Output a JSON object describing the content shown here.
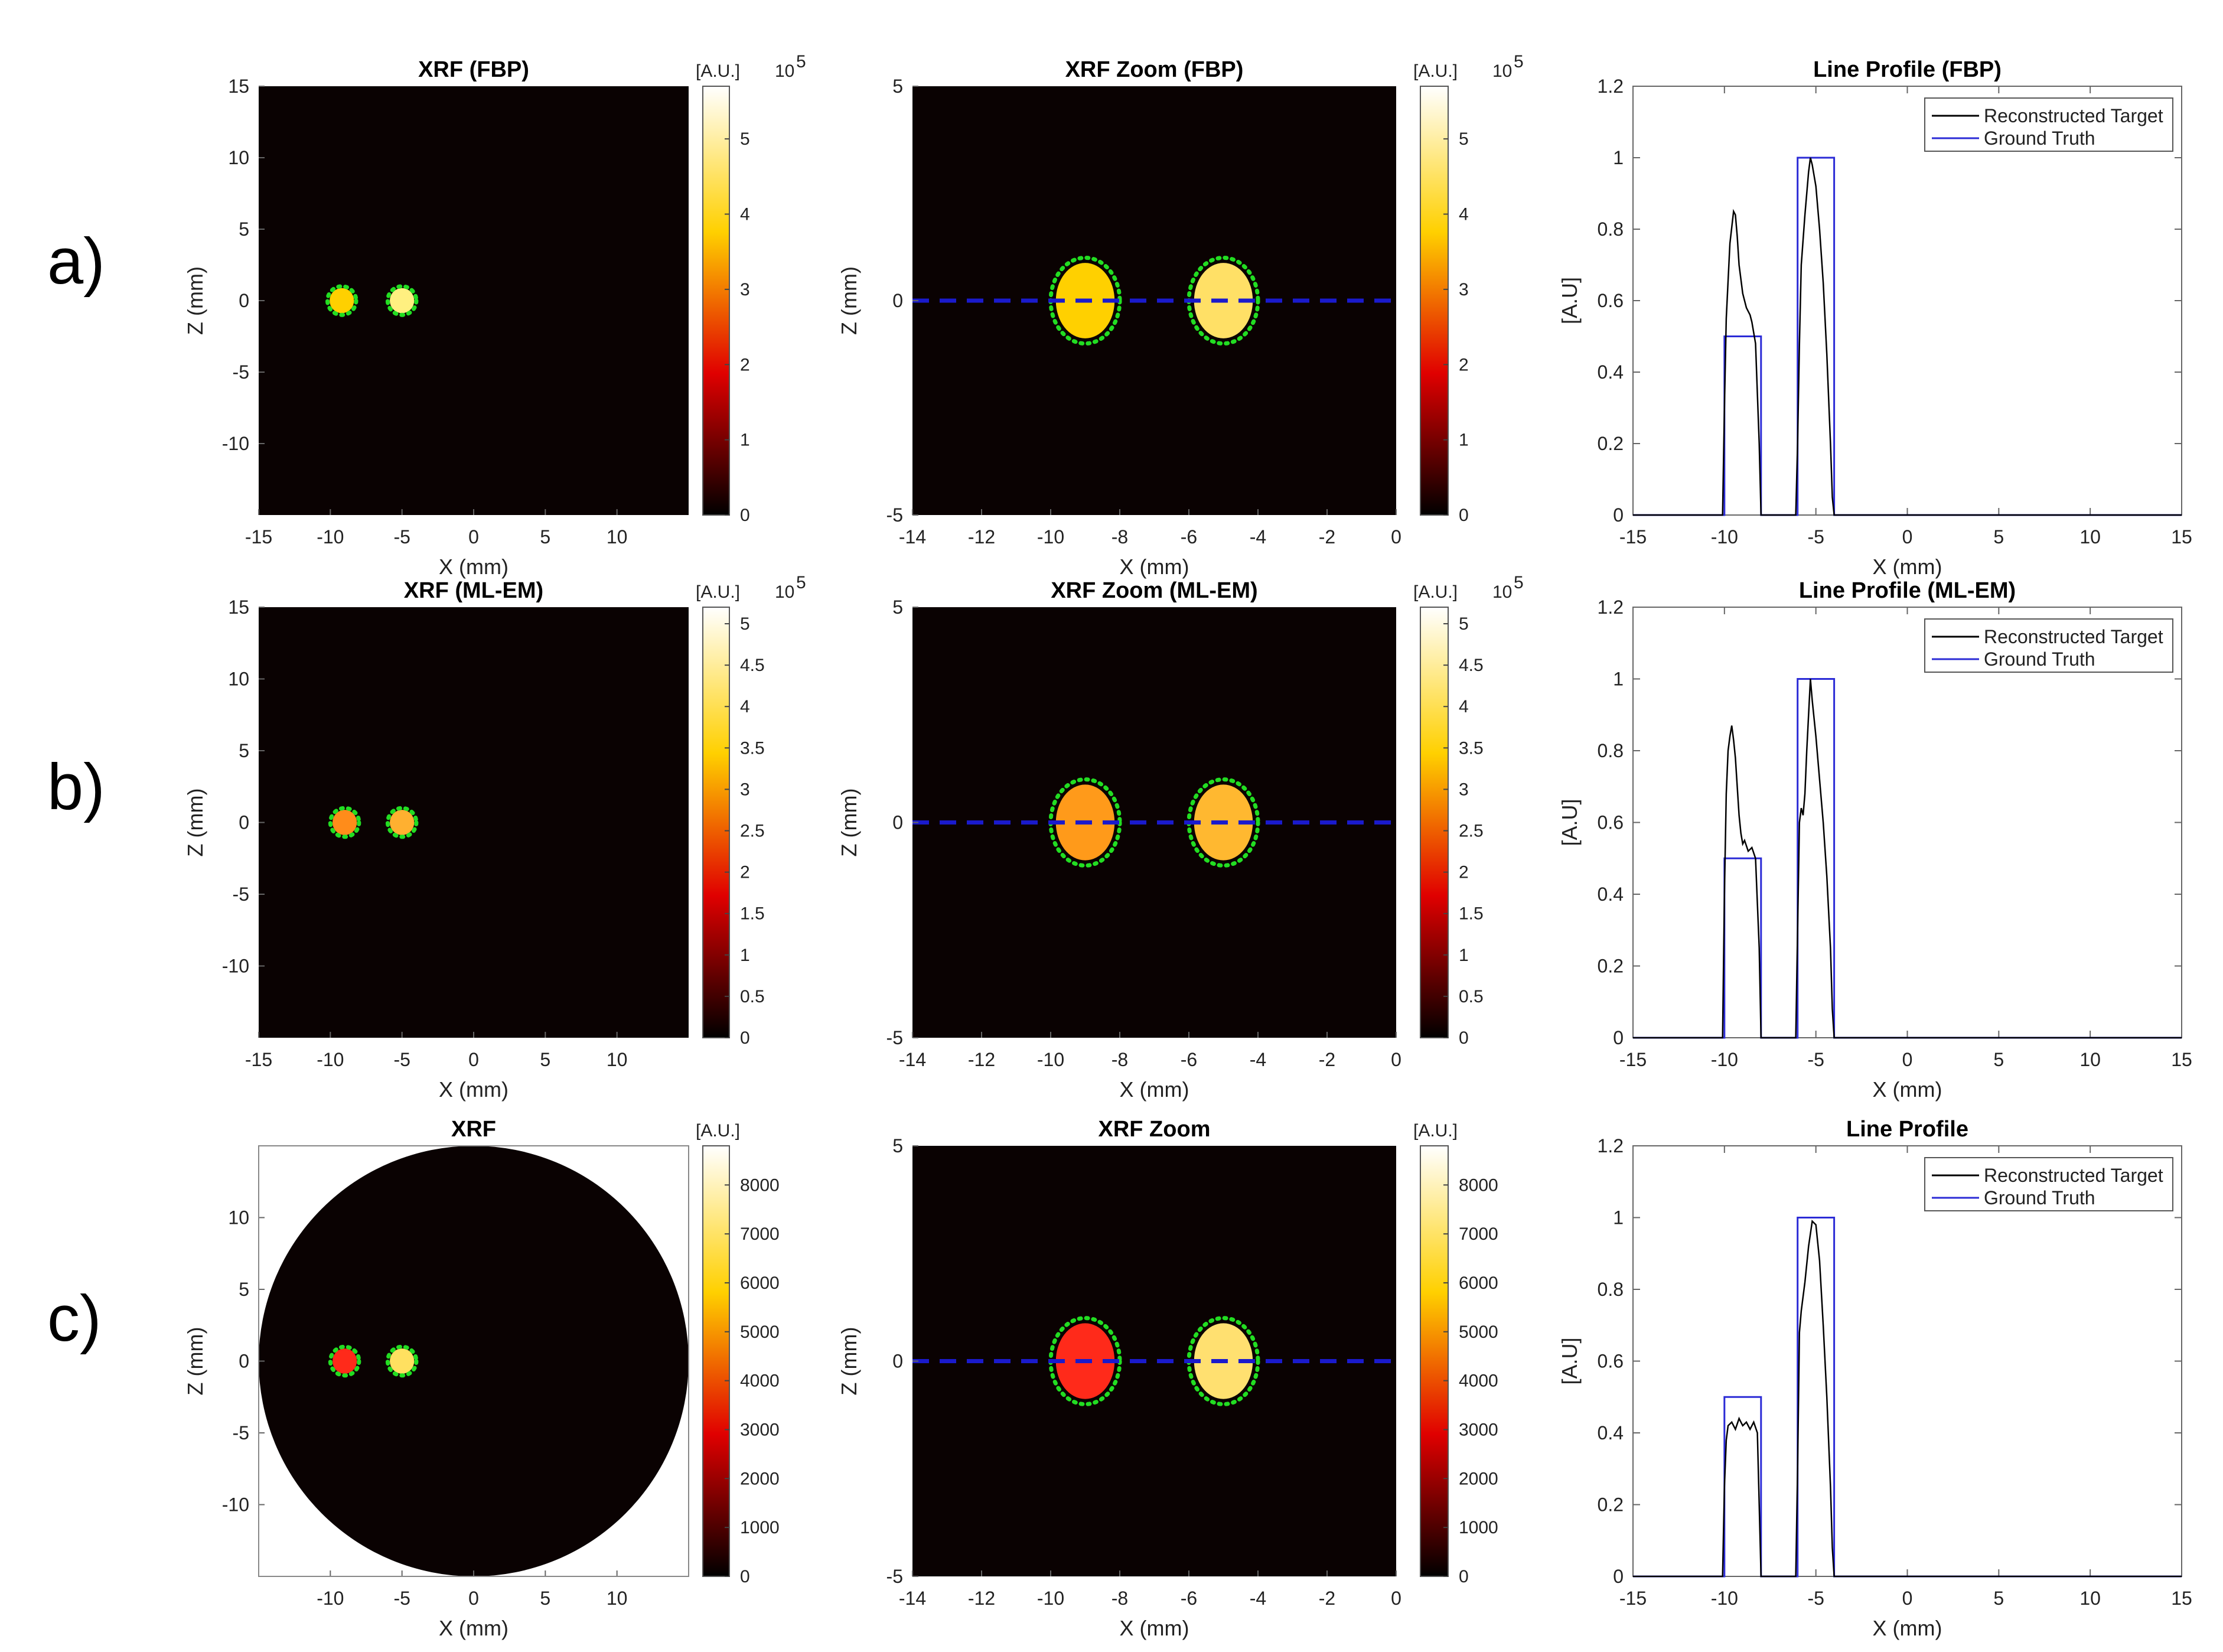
{
  "chart_data": [
    {
      "type": "heatmap",
      "row": "a",
      "title": "XRF (FBP)",
      "xlabel": "X (mm)",
      "ylabel": "Z (mm)",
      "xlim": [
        -15,
        15
      ],
      "ylim": [
        -15,
        15
      ],
      "xticks": [
        "-15",
        "-10",
        "-5",
        "0",
        "5",
        "10"
      ],
      "yticks": [
        "15",
        "10",
        "5",
        "0",
        "-5",
        "-10"
      ],
      "colorbar": {
        "unit": "[A.U.]",
        "exponent": "10",
        "exponent_power": "5",
        "ticks": [
          "0",
          "1",
          "2",
          "3",
          "4",
          "5"
        ],
        "max": 5.7
      },
      "field": "square",
      "targets": [
        {
          "x": -9.2,
          "z": 0,
          "r": 1,
          "fill": "#ffd000"
        },
        {
          "x": -5,
          "z": 0,
          "r": 1,
          "fill": "#fff080"
        }
      ]
    },
    {
      "type": "heatmap",
      "row": "a",
      "title": "XRF Zoom (FBP)",
      "xlabel": "X (mm)",
      "ylabel": "Z (mm)",
      "xlim": [
        -14,
        0
      ],
      "ylim": [
        -5,
        5
      ],
      "xticks": [
        "-14",
        "-12",
        "-10",
        "-8",
        "-6",
        "-4",
        "-2",
        "0"
      ],
      "yticks": [
        "5",
        "0",
        "-5"
      ],
      "colorbar": {
        "unit": "[A.U.]",
        "exponent": "10",
        "exponent_power": "5",
        "ticks": [
          "0",
          "1",
          "2",
          "3",
          "4",
          "5"
        ],
        "max": 5.7
      },
      "profile_line_z": 0,
      "targets": [
        {
          "x": -9,
          "z": 0,
          "r": 1,
          "fill": "#ffd000"
        },
        {
          "x": -5,
          "z": 0,
          "r": 1,
          "fill": "#ffe066"
        }
      ]
    },
    {
      "type": "line",
      "row": "a",
      "title": "Line Profile (FBP)",
      "xlabel": "X (mm)",
      "ylabel": "[A.U]",
      "xlim": [
        -15,
        15
      ],
      "ylim": [
        0,
        1.2
      ],
      "xticks": [
        "-15",
        "-10",
        "-5",
        "0",
        "5",
        "10",
        "15"
      ],
      "yticks": [
        "0",
        "0.2",
        "0.4",
        "0.6",
        "0.8",
        "1",
        "1.2"
      ],
      "series": [
        {
          "name": "Reconstructed Target",
          "color": "#000000",
          "x": [
            -15,
            -10.1,
            -10,
            -9.9,
            -9.7,
            -9.5,
            -9.4,
            -9.3,
            -9.2,
            -9.0,
            -8.8,
            -8.6,
            -8.5,
            -8.3,
            -8.1,
            -8.0,
            -6.1,
            -6.0,
            -5.9,
            -5.8,
            -5.6,
            -5.4,
            -5.3,
            -5.2,
            -5.0,
            -4.8,
            -4.6,
            -4.4,
            -4.2,
            -4.1,
            -4.0,
            15
          ],
          "y": [
            0,
            0,
            0.3,
            0.55,
            0.76,
            0.85,
            0.84,
            0.78,
            0.7,
            0.62,
            0.58,
            0.56,
            0.54,
            0.48,
            0.2,
            0,
            0,
            0.2,
            0.48,
            0.7,
            0.84,
            0.96,
            1.0,
            0.98,
            0.92,
            0.8,
            0.65,
            0.45,
            0.2,
            0.05,
            0,
            0
          ]
        },
        {
          "name": "Ground Truth",
          "color": "#2b2bd6",
          "x": [
            -15,
            -10,
            -10,
            -8,
            -8,
            -6,
            -6,
            -4,
            -4,
            15
          ],
          "y": [
            0,
            0,
            0.5,
            0.5,
            0,
            0,
            1,
            1,
            0,
            0
          ]
        }
      ]
    },
    {
      "type": "heatmap",
      "row": "b",
      "title": "XRF (ML-EM)",
      "xlabel": "X (mm)",
      "ylabel": "Z (mm)",
      "xlim": [
        -15,
        15
      ],
      "ylim": [
        -15,
        15
      ],
      "xticks": [
        "-15",
        "-10",
        "-5",
        "0",
        "5",
        "10"
      ],
      "yticks": [
        "15",
        "10",
        "5",
        "0",
        "-5",
        "-10"
      ],
      "colorbar": {
        "unit": "[A.U.]",
        "exponent": "10",
        "exponent_power": "5",
        "ticks": [
          "0",
          "0.5",
          "1",
          "1.5",
          "2",
          "2.5",
          "3",
          "3.5",
          "4",
          "4.5",
          "5"
        ],
        "max": 5.2
      },
      "field": "square",
      "targets": [
        {
          "x": -9,
          "z": 0,
          "r": 1,
          "fill": "#ff8c1a"
        },
        {
          "x": -5,
          "z": 0,
          "r": 1,
          "fill": "#ffb030"
        }
      ]
    },
    {
      "type": "heatmap",
      "row": "b",
      "title": "XRF Zoom (ML-EM)",
      "xlabel": "X (mm)",
      "ylabel": "Z (mm)",
      "xlim": [
        -14,
        0
      ],
      "ylim": [
        -5,
        5
      ],
      "xticks": [
        "-14",
        "-12",
        "-10",
        "-8",
        "-6",
        "-4",
        "-2",
        "0"
      ],
      "yticks": [
        "5",
        "0",
        "-5"
      ],
      "colorbar": {
        "unit": "[A.U.]",
        "exponent": "10",
        "exponent_power": "5",
        "ticks": [
          "0",
          "0.5",
          "1",
          "1.5",
          "2",
          "2.5",
          "3",
          "3.5",
          "4",
          "4.5",
          "5"
        ],
        "max": 5.2
      },
      "profile_line_z": 0,
      "targets": [
        {
          "x": -9,
          "z": 0,
          "r": 1,
          "fill": "#ff9a1a"
        },
        {
          "x": -5,
          "z": 0,
          "r": 1,
          "fill": "#ffb830"
        }
      ]
    },
    {
      "type": "line",
      "row": "b",
      "title": "Line Profile (ML-EM)",
      "xlabel": "X (mm)",
      "ylabel": "[A.U]",
      "xlim": [
        -15,
        15
      ],
      "ylim": [
        0,
        1.2
      ],
      "xticks": [
        "-15",
        "-10",
        "-5",
        "0",
        "5",
        "10",
        "15"
      ],
      "yticks": [
        "0",
        "0.2",
        "0.4",
        "0.6",
        "0.8",
        "1",
        "1.2"
      ],
      "series": [
        {
          "name": "Reconstructed Target",
          "color": "#000000",
          "x": [
            -15,
            -10.1,
            -10,
            -9.9,
            -9.8,
            -9.7,
            -9.6,
            -9.5,
            -9.4,
            -9.3,
            -9.2,
            -9.1,
            -9.0,
            -8.9,
            -8.7,
            -8.5,
            -8.3,
            -8.1,
            -8.0,
            -6.1,
            -6.0,
            -5.9,
            -5.8,
            -5.7,
            -5.6,
            -5.5,
            -5.4,
            -5.3,
            -5.2,
            -5.0,
            -4.8,
            -4.6,
            -4.4,
            -4.2,
            -4.1,
            -4.0,
            15
          ],
          "y": [
            0,
            0,
            0.4,
            0.68,
            0.8,
            0.84,
            0.87,
            0.83,
            0.78,
            0.7,
            0.62,
            0.57,
            0.54,
            0.55,
            0.52,
            0.53,
            0.5,
            0.25,
            0,
            0,
            0.3,
            0.6,
            0.64,
            0.62,
            0.68,
            0.8,
            0.9,
            1.0,
            0.94,
            0.84,
            0.72,
            0.6,
            0.45,
            0.25,
            0.08,
            0,
            0
          ]
        },
        {
          "name": "Ground Truth",
          "color": "#2b2bd6",
          "x": [
            -15,
            -10,
            -10,
            -8,
            -8,
            -6,
            -6,
            -4,
            -4,
            15
          ],
          "y": [
            0,
            0,
            0.5,
            0.5,
            0,
            0,
            1,
            1,
            0,
            0
          ]
        }
      ]
    },
    {
      "type": "heatmap",
      "row": "c",
      "title": "XRF",
      "xlabel": "X (mm)",
      "ylabel": "Z (mm)",
      "xlim": [
        -15,
        15
      ],
      "ylim": [
        -15,
        15
      ],
      "xticks": [
        "-10",
        "-5",
        "0",
        "5",
        "10"
      ],
      "yticks": [
        "10",
        "5",
        "0",
        "-5",
        "-10"
      ],
      "colorbar": {
        "unit": "[A.U.]",
        "ticks": [
          "0",
          "1000",
          "2000",
          "3000",
          "4000",
          "5000",
          "6000",
          "7000",
          "8000"
        ],
        "max": 8800
      },
      "field": "circle",
      "targets": [
        {
          "x": -9,
          "z": 0,
          "r": 1,
          "fill": "#ff2a1a"
        },
        {
          "x": -5,
          "z": 0,
          "r": 1,
          "fill": "#ffe060"
        }
      ]
    },
    {
      "type": "heatmap",
      "row": "c",
      "title": "XRF Zoom",
      "xlabel": "X (mm)",
      "ylabel": "Z (mm)",
      "xlim": [
        -14,
        0
      ],
      "ylim": [
        -5,
        5
      ],
      "xticks": [
        "-14",
        "-12",
        "-10",
        "-8",
        "-6",
        "-4",
        "-2",
        "0"
      ],
      "yticks": [
        "5",
        "0",
        "-5"
      ],
      "colorbar": {
        "unit": "[A.U.]",
        "ticks": [
          "0",
          "1000",
          "2000",
          "3000",
          "4000",
          "5000",
          "6000",
          "7000",
          "8000"
        ],
        "max": 8800
      },
      "profile_line_z": 0,
      "targets": [
        {
          "x": -9,
          "z": 0,
          "r": 1,
          "fill": "#ff2a1a"
        },
        {
          "x": -5,
          "z": 0,
          "r": 1,
          "fill": "#ffe070"
        }
      ]
    },
    {
      "type": "line",
      "row": "c",
      "title": "Line Profile",
      "xlabel": "X (mm)",
      "ylabel": "[A.U]",
      "xlim": [
        -15,
        15
      ],
      "ylim": [
        0,
        1.2
      ],
      "xticks": [
        "-15",
        "-10",
        "-5",
        "0",
        "5",
        "10",
        "15"
      ],
      "yticks": [
        "0",
        "0.2",
        "0.4",
        "0.6",
        "0.8",
        "1",
        "1.2"
      ],
      "series": [
        {
          "name": "Reconstructed Target",
          "color": "#000000",
          "x": [
            -15,
            -10.1,
            -10,
            -9.9,
            -9.8,
            -9.6,
            -9.4,
            -9.2,
            -9.0,
            -8.8,
            -8.6,
            -8.4,
            -8.2,
            -8.1,
            -8.0,
            -6.1,
            -6.0,
            -5.9,
            -5.8,
            -5.6,
            -5.4,
            -5.2,
            -5.0,
            -4.8,
            -4.6,
            -4.4,
            -4.2,
            -4.1,
            -4.0,
            15
          ],
          "y": [
            0,
            0,
            0.25,
            0.38,
            0.42,
            0.43,
            0.41,
            0.44,
            0.42,
            0.43,
            0.41,
            0.43,
            0.4,
            0.2,
            0,
            0,
            0.3,
            0.68,
            0.74,
            0.82,
            0.92,
            0.99,
            0.98,
            0.88,
            0.7,
            0.5,
            0.25,
            0.08,
            0,
            0
          ]
        },
        {
          "name": "Ground Truth",
          "color": "#2b2bd6",
          "x": [
            -15,
            -10,
            -10,
            -8,
            -8,
            -6,
            -6,
            -4,
            -4,
            15
          ],
          "y": [
            0,
            0,
            0.5,
            0.5,
            0,
            0,
            1,
            1,
            0,
            0
          ]
        }
      ]
    }
  ],
  "row_labels": [
    "a)",
    "b)",
    "c)"
  ]
}
